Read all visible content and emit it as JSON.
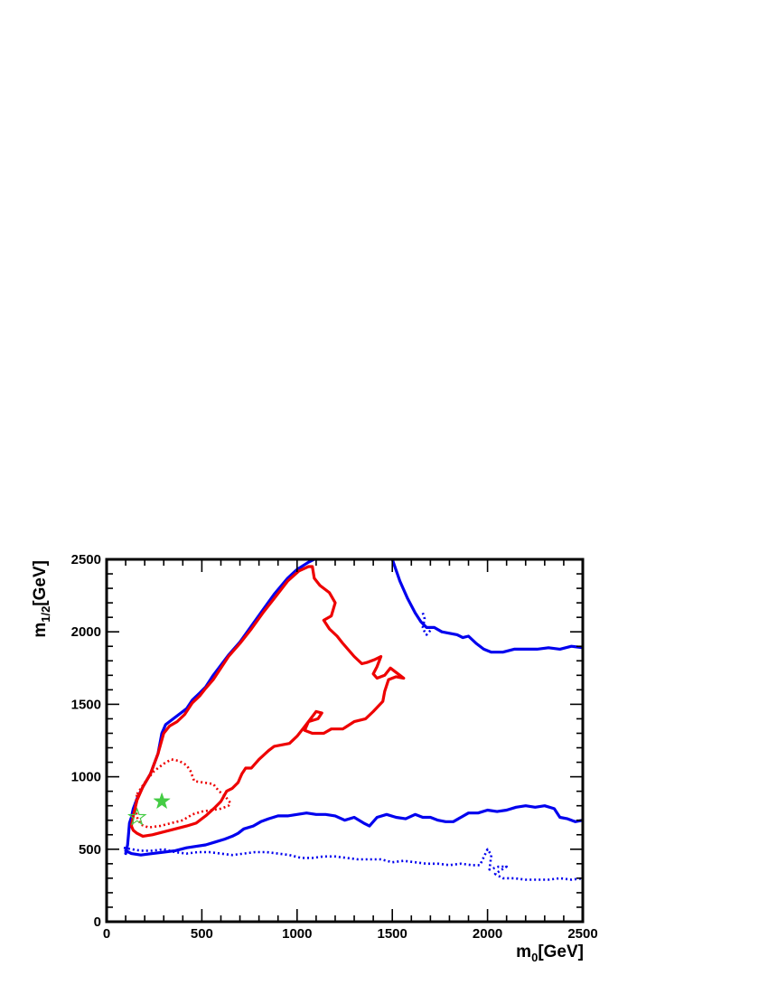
{
  "chart_data": {
    "type": "line",
    "title": "",
    "xlabel": {
      "base": "m",
      "sub": "0",
      "unit": "[GeV]"
    },
    "ylabel": {
      "base": "m",
      "sub": "1/2",
      "unit": "[GeV]"
    },
    "xlim": [
      0,
      2500
    ],
    "ylim": [
      0,
      2500
    ],
    "x_ticks": [
      "0",
      "500",
      "1000",
      "1500",
      "2000",
      "2500"
    ],
    "y_ticks": [
      "0",
      "500",
      "1000",
      "1500",
      "2000",
      "2500"
    ],
    "grid": false,
    "legend": "none",
    "series": [
      {
        "color": "#0000ee",
        "style": "solid",
        "points": [
          [
            100,
            470
          ],
          [
            110,
            530
          ],
          [
            115,
            600
          ],
          [
            120,
            680
          ],
          [
            130,
            720
          ],
          [
            140,
            780
          ],
          [
            160,
            850
          ],
          [
            190,
            930
          ],
          [
            230,
            1020
          ],
          [
            270,
            1160
          ],
          [
            290,
            1300
          ],
          [
            310,
            1360
          ],
          [
            350,
            1400
          ],
          [
            390,
            1440
          ],
          [
            420,
            1470
          ],
          [
            450,
            1530
          ],
          [
            490,
            1580
          ],
          [
            520,
            1620
          ],
          [
            560,
            1700
          ],
          [
            600,
            1770
          ],
          [
            640,
            1840
          ],
          [
            700,
            1930
          ],
          [
            760,
            2040
          ],
          [
            820,
            2150
          ],
          [
            880,
            2260
          ],
          [
            950,
            2370
          ],
          [
            1000,
            2430
          ],
          [
            1060,
            2480
          ],
          [
            1090,
            2500
          ]
        ]
      },
      {
        "color": "#0000ee",
        "style": "solid",
        "points": [
          [
            100,
            490
          ],
          [
            130,
            470
          ],
          [
            180,
            460
          ],
          [
            240,
            470
          ],
          [
            300,
            480
          ],
          [
            360,
            490
          ],
          [
            420,
            510
          ],
          [
            470,
            520
          ],
          [
            520,
            530
          ],
          [
            570,
            550
          ],
          [
            620,
            570
          ],
          [
            660,
            590
          ],
          [
            690,
            610
          ],
          [
            720,
            640
          ],
          [
            770,
            660
          ],
          [
            810,
            690
          ],
          [
            850,
            710
          ],
          [
            900,
            730
          ],
          [
            950,
            730
          ],
          [
            1000,
            740
          ],
          [
            1050,
            750
          ],
          [
            1100,
            740
          ],
          [
            1150,
            740
          ],
          [
            1200,
            730
          ],
          [
            1250,
            700
          ],
          [
            1300,
            720
          ],
          [
            1350,
            680
          ],
          [
            1380,
            660
          ],
          [
            1420,
            720
          ],
          [
            1470,
            740
          ],
          [
            1520,
            720
          ],
          [
            1570,
            710
          ],
          [
            1620,
            740
          ],
          [
            1660,
            720
          ],
          [
            1700,
            720
          ],
          [
            1740,
            700
          ],
          [
            1780,
            690
          ],
          [
            1820,
            690
          ],
          [
            1860,
            720
          ],
          [
            1900,
            750
          ],
          [
            1950,
            750
          ],
          [
            2000,
            770
          ],
          [
            2050,
            760
          ],
          [
            2100,
            770
          ],
          [
            2150,
            790
          ],
          [
            2200,
            800
          ],
          [
            2250,
            790
          ],
          [
            2300,
            800
          ],
          [
            2350,
            780
          ],
          [
            2380,
            720
          ],
          [
            2420,
            710
          ],
          [
            2460,
            690
          ],
          [
            2500,
            700
          ]
        ]
      },
      {
        "color": "#0000ee",
        "style": "solid",
        "points": [
          [
            1500,
            2500
          ],
          [
            1540,
            2350
          ],
          [
            1580,
            2230
          ],
          [
            1620,
            2130
          ],
          [
            1650,
            2070
          ],
          [
            1680,
            2030
          ],
          [
            1720,
            2030
          ],
          [
            1760,
            2000
          ],
          [
            1800,
            1990
          ],
          [
            1840,
            1980
          ],
          [
            1870,
            1960
          ],
          [
            1900,
            1970
          ],
          [
            1940,
            1920
          ],
          [
            1980,
            1880
          ],
          [
            2020,
            1860
          ],
          [
            2080,
            1860
          ],
          [
            2140,
            1880
          ],
          [
            2200,
            1880
          ],
          [
            2260,
            1880
          ],
          [
            2320,
            1890
          ],
          [
            2380,
            1880
          ],
          [
            2440,
            1900
          ],
          [
            2500,
            1890
          ]
        ]
      },
      {
        "color": "#0000ee",
        "style": "dotted",
        "points": [
          [
            90,
            510
          ],
          [
            130,
            500
          ],
          [
            180,
            490
          ],
          [
            240,
            490
          ],
          [
            300,
            500
          ],
          [
            360,
            480
          ],
          [
            420,
            470
          ],
          [
            480,
            480
          ],
          [
            540,
            480
          ],
          [
            600,
            470
          ],
          [
            660,
            460
          ],
          [
            720,
            470
          ],
          [
            780,
            480
          ],
          [
            840,
            480
          ],
          [
            900,
            470
          ],
          [
            960,
            460
          ],
          [
            1020,
            440
          ],
          [
            1080,
            440
          ],
          [
            1140,
            450
          ],
          [
            1200,
            450
          ],
          [
            1260,
            440
          ],
          [
            1320,
            430
          ],
          [
            1380,
            430
          ],
          [
            1440,
            430
          ],
          [
            1500,
            410
          ],
          [
            1560,
            420
          ],
          [
            1620,
            410
          ],
          [
            1680,
            400
          ],
          [
            1740,
            400
          ],
          [
            1800,
            390
          ],
          [
            1860,
            400
          ],
          [
            1920,
            390
          ],
          [
            1960,
            390
          ],
          [
            2000,
            500
          ],
          [
            2020,
            460
          ],
          [
            2010,
            360
          ],
          [
            2060,
            380
          ],
          [
            2100,
            380
          ],
          [
            2040,
            330
          ],
          [
            2080,
            300
          ],
          [
            2140,
            300
          ],
          [
            2200,
            290
          ],
          [
            2260,
            290
          ],
          [
            2320,
            290
          ],
          [
            2380,
            300
          ],
          [
            2440,
            290
          ],
          [
            2500,
            300
          ]
        ]
      },
      {
        "color": "#0000ee",
        "style": "dotted",
        "points": [
          [
            1660,
            2130
          ],
          [
            1670,
            2090
          ],
          [
            1660,
            2030
          ],
          [
            1670,
            2000
          ],
          [
            1680,
            1980
          ],
          [
            1700,
            2010
          ]
        ]
      },
      {
        "color": "#ee0000",
        "style": "solid",
        "points": [
          [
            130,
            660
          ],
          [
            140,
            730
          ],
          [
            160,
            840
          ],
          [
            190,
            930
          ],
          [
            230,
            1020
          ],
          [
            270,
            1160
          ],
          [
            300,
            1300
          ],
          [
            330,
            1350
          ],
          [
            370,
            1380
          ],
          [
            410,
            1430
          ],
          [
            450,
            1510
          ],
          [
            490,
            1560
          ],
          [
            520,
            1610
          ],
          [
            560,
            1670
          ],
          [
            600,
            1750
          ],
          [
            640,
            1830
          ],
          [
            700,
            1920
          ],
          [
            760,
            2020
          ],
          [
            820,
            2130
          ],
          [
            880,
            2230
          ],
          [
            950,
            2350
          ],
          [
            1010,
            2420
          ],
          [
            1060,
            2450
          ],
          [
            1080,
            2450
          ],
          [
            1090,
            2370
          ],
          [
            1120,
            2320
          ],
          [
            1170,
            2270
          ],
          [
            1200,
            2200
          ],
          [
            1180,
            2110
          ],
          [
            1140,
            2080
          ],
          [
            1170,
            2020
          ],
          [
            1210,
            1970
          ],
          [
            1240,
            1920
          ],
          [
            1300,
            1830
          ],
          [
            1340,
            1780
          ],
          [
            1370,
            1790
          ],
          [
            1410,
            1810
          ],
          [
            1440,
            1830
          ],
          [
            1420,
            1760
          ],
          [
            1400,
            1710
          ],
          [
            1420,
            1680
          ],
          [
            1460,
            1700
          ],
          [
            1490,
            1750
          ],
          [
            1540,
            1700
          ],
          [
            1560,
            1680
          ],
          [
            1520,
            1690
          ],
          [
            1480,
            1670
          ],
          [
            1460,
            1590
          ],
          [
            1450,
            1520
          ],
          [
            1400,
            1450
          ],
          [
            1360,
            1400
          ],
          [
            1300,
            1380
          ],
          [
            1240,
            1330
          ],
          [
            1180,
            1330
          ],
          [
            1140,
            1300
          ],
          [
            1080,
            1300
          ],
          [
            1040,
            1320
          ],
          [
            1060,
            1380
          ],
          [
            1110,
            1400
          ],
          [
            1130,
            1440
          ],
          [
            1100,
            1450
          ],
          [
            1060,
            1380
          ],
          [
            1030,
            1330
          ],
          [
            1000,
            1280
          ],
          [
            960,
            1230
          ],
          [
            920,
            1220
          ],
          [
            880,
            1210
          ],
          [
            850,
            1180
          ],
          [
            800,
            1120
          ],
          [
            760,
            1060
          ],
          [
            730,
            1060
          ],
          [
            710,
            1020
          ],
          [
            690,
            960
          ],
          [
            660,
            920
          ],
          [
            630,
            900
          ],
          [
            600,
            830
          ],
          [
            570,
            790
          ],
          [
            520,
            730
          ],
          [
            470,
            680
          ],
          [
            420,
            660
          ],
          [
            360,
            640
          ],
          [
            300,
            620
          ],
          [
            240,
            600
          ],
          [
            190,
            590
          ],
          [
            160,
            610
          ],
          [
            140,
            630
          ],
          [
            130,
            660
          ]
        ]
      },
      {
        "color": "#ee0000",
        "style": "dotted",
        "points": [
          [
            160,
            880
          ],
          [
            200,
            960
          ],
          [
            250,
            1040
          ],
          [
            300,
            1090
          ],
          [
            340,
            1120
          ],
          [
            380,
            1110
          ],
          [
            420,
            1080
          ],
          [
            440,
            1040
          ],
          [
            460,
            970
          ],
          [
            510,
            960
          ],
          [
            560,
            950
          ],
          [
            590,
            900
          ],
          [
            620,
            870
          ],
          [
            650,
            820
          ],
          [
            640,
            800
          ],
          [
            600,
            780
          ],
          [
            550,
            770
          ],
          [
            500,
            760
          ],
          [
            450,
            740
          ],
          [
            400,
            700
          ],
          [
            340,
            680
          ],
          [
            280,
            660
          ],
          [
            220,
            650
          ],
          [
            180,
            670
          ],
          [
            160,
            720
          ],
          [
            150,
            800
          ],
          [
            160,
            880
          ]
        ]
      }
    ],
    "markers": [
      {
        "x": 290,
        "y": 830,
        "shape": "star",
        "fill": "#44cc44",
        "filled": true
      },
      {
        "x": 160,
        "y": 720,
        "shape": "star",
        "fill": "#44cc44",
        "filled": false
      }
    ]
  }
}
